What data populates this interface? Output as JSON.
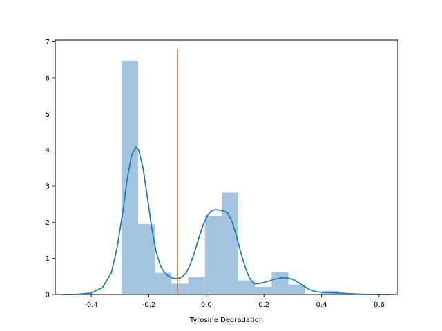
{
  "chart_data": {
    "type": "histogram",
    "xlabel": "Tyrosine Degradation",
    "ylabel": "",
    "xlim": [
      -0.525,
      0.665
    ],
    "ylim": [
      0,
      7.05
    ],
    "x_ticks": [
      -0.4,
      -0.2,
      0.0,
      0.2,
      0.4,
      0.6
    ],
    "x_tick_labels": [
      "-0.4",
      "-0.2",
      "0.0",
      "0.2",
      "0.4",
      "0.6"
    ],
    "y_ticks": [
      0,
      1,
      2,
      3,
      4,
      5,
      6,
      7
    ],
    "y_tick_labels": [
      "0",
      "1",
      "2",
      "3",
      "4",
      "5",
      "6",
      "7"
    ],
    "histogram": {
      "color": "#a3c4de",
      "bins": [
        {
          "x0": -0.295,
          "x1": -0.237,
          "value": 6.48
        },
        {
          "x0": -0.237,
          "x1": -0.179,
          "value": 1.95
        },
        {
          "x0": -0.179,
          "x1": -0.121,
          "value": 0.6
        },
        {
          "x0": -0.121,
          "x1": -0.063,
          "value": 0.3
        },
        {
          "x0": -0.063,
          "x1": -0.005,
          "value": 0.48
        },
        {
          "x0": -0.005,
          "x1": 0.053,
          "value": 2.18
        },
        {
          "x0": 0.053,
          "x1": 0.111,
          "value": 2.82
        },
        {
          "x0": 0.111,
          "x1": 0.169,
          "value": 0.39
        },
        {
          "x0": 0.169,
          "x1": 0.227,
          "value": 0.21
        },
        {
          "x0": 0.227,
          "x1": 0.285,
          "value": 0.62
        },
        {
          "x0": 0.285,
          "x1": 0.343,
          "value": 0.27
        },
        {
          "x0": 0.343,
          "x1": 0.401,
          "value": 0.0
        },
        {
          "x0": 0.401,
          "x1": 0.459,
          "value": 0.1
        }
      ]
    },
    "kde": {
      "color": "#1f77b4",
      "x": [
        -0.5,
        -0.45,
        -0.4,
        -0.36,
        -0.33,
        -0.31,
        -0.29,
        -0.275,
        -0.26,
        -0.245,
        -0.235,
        -0.22,
        -0.205,
        -0.19,
        -0.175,
        -0.16,
        -0.145,
        -0.13,
        -0.115,
        -0.1,
        -0.085,
        -0.07,
        -0.055,
        -0.04,
        -0.025,
        -0.01,
        0.005,
        0.02,
        0.035,
        0.05,
        0.065,
        0.075,
        0.09,
        0.105,
        0.12,
        0.135,
        0.15,
        0.165,
        0.18,
        0.2,
        0.22,
        0.24,
        0.26,
        0.28,
        0.3,
        0.32,
        0.34,
        0.36,
        0.38,
        0.4,
        0.43,
        0.46,
        0.5,
        0.55,
        0.6,
        0.64
      ],
      "y": [
        0.0,
        0.005,
        0.04,
        0.2,
        0.6,
        1.3,
        2.3,
        3.2,
        3.85,
        4.08,
        4.0,
        3.5,
        2.7,
        1.85,
        1.2,
        0.8,
        0.6,
        0.5,
        0.45,
        0.44,
        0.48,
        0.6,
        0.85,
        1.2,
        1.6,
        1.95,
        2.2,
        2.33,
        2.35,
        2.33,
        2.3,
        2.25,
        2.0,
        1.6,
        1.15,
        0.75,
        0.45,
        0.3,
        0.3,
        0.33,
        0.38,
        0.43,
        0.46,
        0.46,
        0.42,
        0.33,
        0.22,
        0.13,
        0.08,
        0.06,
        0.05,
        0.04,
        0.02,
        0.005,
        0.001,
        0.0
      ]
    },
    "vertical_line": {
      "x": -0.1,
      "y0": 0,
      "y1": 6.8,
      "color": "#ff7f0e"
    }
  }
}
